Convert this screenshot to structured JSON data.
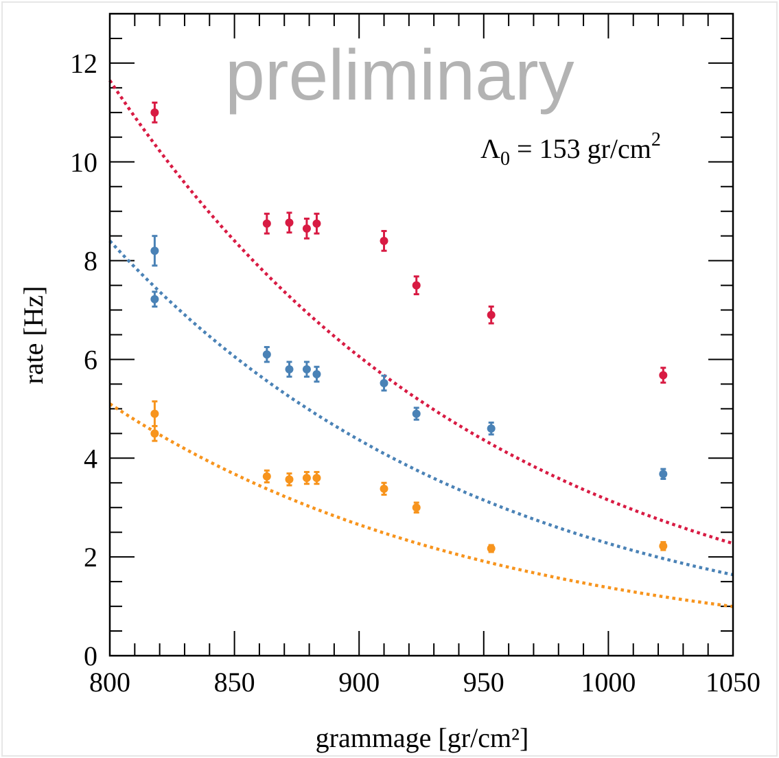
{
  "chart_data": {
    "type": "scatter",
    "xlabel": "grammage [gr/cm²]",
    "ylabel": "rate [Hz]",
    "xlim": [
      800,
      1050
    ],
    "ylim": [
      0,
      13
    ],
    "xticks": [
      800,
      850,
      900,
      950,
      1000,
      1050
    ],
    "yticks": [
      0,
      2,
      4,
      6,
      8,
      10,
      12
    ],
    "grid": false,
    "watermark": "preliminary",
    "annotation": {
      "symbol": "Λ",
      "subscript": "0",
      "text": " = 153 gr/cm",
      "superscript": "2"
    },
    "fit": {
      "type": "exponential",
      "lambda": 153,
      "style": "dotted"
    },
    "series": [
      {
        "color": "#d81b43",
        "fit_y_at_800": 11.65,
        "x": [
          818,
          863,
          872,
          879,
          883,
          910,
          923,
          953,
          1022
        ],
        "y": [
          11.0,
          8.75,
          8.77,
          8.65,
          8.75,
          8.4,
          7.5,
          6.9,
          5.68
        ],
        "err": [
          0.2,
          0.2,
          0.2,
          0.2,
          0.2,
          0.2,
          0.18,
          0.17,
          0.15
        ]
      },
      {
        "color": "#4a82b6",
        "fit_y_at_800": 8.4,
        "x": [
          818,
          818,
          863,
          872,
          879,
          883,
          910,
          923,
          953,
          1022
        ],
        "y": [
          8.2,
          7.22,
          6.1,
          5.8,
          5.8,
          5.7,
          5.52,
          4.9,
          4.6,
          3.68
        ],
        "err": [
          0.3,
          0.15,
          0.15,
          0.15,
          0.15,
          0.15,
          0.15,
          0.12,
          0.12,
          0.1
        ]
      },
      {
        "color": "#f7941d",
        "fit_y_at_800": 5.1,
        "x": [
          818,
          818,
          863,
          872,
          879,
          883,
          910,
          923,
          953,
          1022
        ],
        "y": [
          4.9,
          4.5,
          3.63,
          3.57,
          3.6,
          3.6,
          3.38,
          3.0,
          2.17,
          2.22
        ],
        "err": [
          0.25,
          0.15,
          0.12,
          0.12,
          0.12,
          0.12,
          0.12,
          0.1,
          0.07,
          0.08
        ]
      }
    ]
  }
}
